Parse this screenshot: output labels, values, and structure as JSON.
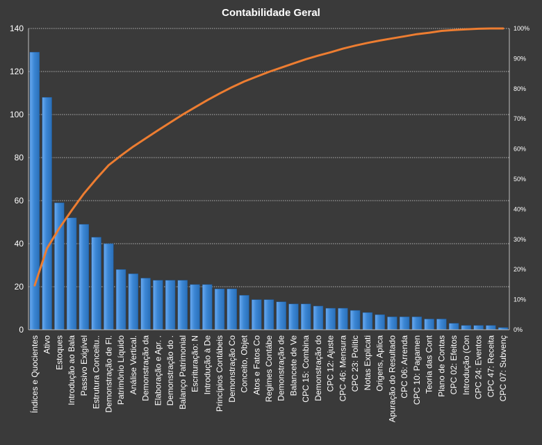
{
  "chart_data": {
    "type": "bar",
    "title": "Contabilidade  Geral",
    "categories": [
      "Índices e Quocientes",
      "Ativo",
      "Estoques",
      "Introdução  ao Bala",
      "Passivo Exigível",
      "Estrutura Conceitu..",
      "Demonstração de Fl.",
      "Patrimônio Líquido",
      "Análise Vertical.",
      "Demonstração da",
      "Elaboração e Apr. .",
      "Demonstração do .",
      "Balanço Patrimonial",
      "Escrituração: N",
      "Introdução à De",
      "Princípios Contábeis",
      "Demonstração Co",
      "Conceito, Objet",
      "Atos e Fatos Co",
      "Regimes Contábe",
      "Demonstração de",
      "Balancete de Ve",
      "CPC 15: Combina",
      "Demonstração do",
      "CPC 12: Ajuste",
      "CPC 46: Mensura",
      "CPC 23: Polític",
      "Notas Explicati",
      "Origens, Aplica",
      "Apuração do Resultado",
      "CPC 06: Arrenda",
      "CPC 10: Pagamen",
      "Teoria das Cont",
      "Plano de Contas",
      "CPC 02: Efeitos",
      "Introdução  (Con",
      "CPC 24: Eventos",
      "CPC 47: Receita",
      "CPC 07: Subvenç"
    ],
    "series": [
      {
        "type": "bar",
        "color": "#3b86d4",
        "values": [
          129,
          108,
          59,
          52,
          49,
          43,
          40,
          28,
          26,
          24,
          23,
          23,
          23,
          21,
          21,
          19,
          19,
          16,
          14,
          14,
          13,
          12,
          12,
          11,
          10,
          10,
          9,
          8,
          7,
          6,
          6,
          6,
          5,
          5,
          3,
          2,
          2,
          2,
          1
        ]
      },
      {
        "type": "line",
        "axis": "secondary",
        "color": "#ed7d31",
        "values": [
          14.7,
          27.0,
          33.7,
          39.6,
          45.2,
          50.1,
          54.6,
          57.8,
          60.8,
          63.5,
          66.2,
          68.8,
          71.4,
          73.8,
          76.2,
          78.4,
          80.5,
          82.4,
          84.0,
          85.6,
          87.0,
          88.4,
          89.8,
          91.0,
          92.1,
          93.3,
          94.3,
          95.2,
          96.0,
          96.7,
          97.4,
          98.1,
          98.6,
          99.2,
          99.5,
          99.7,
          99.9,
          100.0,
          100.0
        ]
      }
    ],
    "ylim": [
      0,
      140
    ],
    "yticks": [
      0,
      20,
      40,
      60,
      80,
      100,
      120,
      140
    ],
    "y2lim": [
      0,
      100
    ],
    "y2ticks": [
      "0%",
      "10%",
      "20%",
      "30%",
      "40%",
      "50%",
      "60%",
      "70%",
      "80%",
      "90%",
      "100%"
    ],
    "grid": true,
    "legend": "none",
    "xlabel": "",
    "ylabel": ""
  }
}
